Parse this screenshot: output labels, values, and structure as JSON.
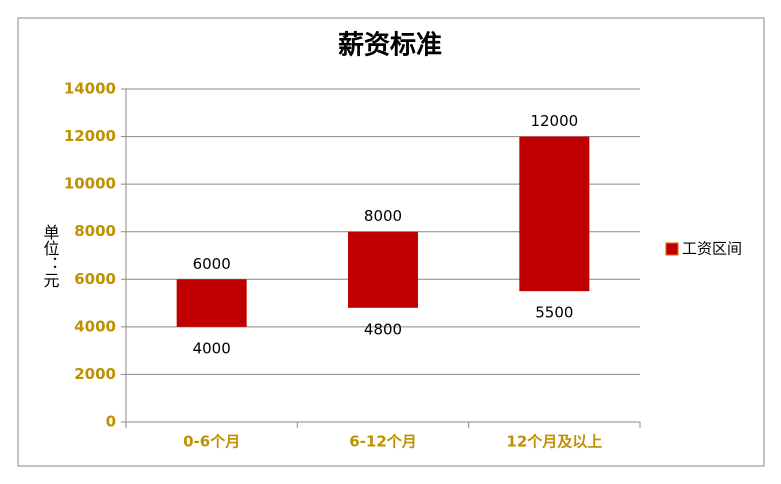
{
  "chart_data": {
    "type": "floating-bar",
    "title": "薪资标准",
    "y_label": "单位：元",
    "categories": [
      "0-6个月",
      "6-12个月",
      "12个月及以上"
    ],
    "series": [
      {
        "name": "工资区间",
        "color": "#c00000",
        "low": [
          4000,
          4800,
          5500
        ],
        "high": [
          6000,
          8000,
          12000
        ]
      }
    ],
    "ylim": [
      0,
      14000
    ],
    "yticks": [
      0,
      2000,
      4000,
      6000,
      8000,
      10000,
      12000,
      14000
    ],
    "grid": true,
    "legend": "right"
  }
}
